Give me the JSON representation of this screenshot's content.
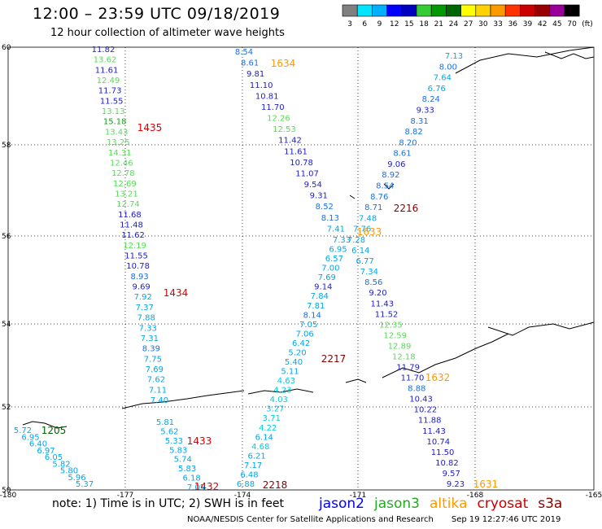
{
  "header": {
    "title": "12:00 – 23:59 UTC 09/18/2019",
    "subtitle": "12 hour collection of altimeter wave heights"
  },
  "legend": {
    "labels": [
      "3",
      "6",
      "9",
      "12",
      "15",
      "18",
      "21",
      "24",
      "27",
      "30",
      "33",
      "36",
      "39",
      "42",
      "45",
      "70"
    ],
    "unit": "(ft)",
    "colors": [
      "#808080",
      "#00e5ff",
      "#00b0ff",
      "#0000ff",
      "#0000c0",
      "#33cc33",
      "#009900",
      "#006600",
      "#ffff00",
      "#ffd200",
      "#ff9900",
      "#ff3300",
      "#cc0000",
      "#990000",
      "#990099",
      "#000000"
    ]
  },
  "axes": {
    "lat_labels": [
      "60",
      "58",
      "56",
      "54",
      "52",
      "50"
    ],
    "lon_labels": [
      "-180",
      "-177",
      "-174",
      "-171",
      "-168",
      "-165"
    ]
  },
  "footer": {
    "note": "note: 1) Time is in UTC; 2) SWH is in feet",
    "credit": "NOAA/NESDIS Center for Satellite Applications and Research",
    "timestamp": "Sep 19 12:27:46 UTC 2019"
  },
  "satellites": [
    {
      "name": "jason2",
      "color": "#0000ff"
    },
    {
      "name": "jason3",
      "color": "#22aa22"
    },
    {
      "name": "altika",
      "color": "#ff9900"
    },
    {
      "name": "cryosat",
      "color": "#cc0000"
    },
    {
      "name": "s3a",
      "color": "#880000"
    }
  ],
  "time_labels": [
    {
      "text": "1634",
      "color": "#ff9900"
    },
    {
      "text": "1435",
      "color": "#dd0000"
    },
    {
      "text": "1434",
      "color": "#dd0000"
    },
    {
      "text": "1433",
      "color": "#dd0000"
    },
    {
      "text": "1432",
      "color": "#dd0000"
    },
    {
      "text": "2218",
      "color": "#880000"
    },
    {
      "text": "2217",
      "color": "#880000"
    },
    {
      "text": "2216",
      "color": "#880000"
    },
    {
      "text": "1633",
      "color": "#ff9900"
    },
    {
      "text": "1632",
      "color": "#ff9900"
    },
    {
      "text": "1631",
      "color": "#ff9900"
    },
    {
      "text": "1205",
      "color": "#006600"
    }
  ],
  "tracks": [
    {
      "id": "cryosat-1435",
      "values": [
        "11.82",
        "13.62",
        "11.61",
        "12.49",
        "11.73",
        "11.55",
        "13.13",
        "15.18",
        "13.43",
        "13.25",
        "14.31",
        "12.46",
        "12.78",
        "12.69",
        "13.21",
        "12.74",
        "11.68",
        "11.48",
        "11.62",
        "12.19",
        "11.55",
        "10.78",
        "8.93",
        "9.69",
        "7.92",
        "7.37",
        "7.88",
        "7.33",
        "7.31",
        "8.39",
        "7.75",
        "7.69",
        "7.62",
        "7.11",
        "7.40"
      ]
    },
    {
      "id": "cryosat-1433",
      "values": [
        "5.81",
        "5.62",
        "5.33",
        "5.83",
        "5.74",
        "5.83",
        "6.18",
        "7.05"
      ]
    },
    {
      "id": "jason3-1205",
      "values": [
        "5.72",
        "6.95",
        "6.40",
        "6.97",
        "6.05",
        "5.82",
        "5.80",
        "5.96",
        "5.37"
      ]
    },
    {
      "id": "altika-1634",
      "values": [
        "8.54",
        "8.61",
        "9.81",
        "11.10",
        "10.81",
        "11.70",
        "12.26",
        "12.53",
        "11.42",
        "11.61",
        "10.78",
        "11.07",
        "9.54",
        "9.31",
        "8.52",
        "8.13",
        "7.41",
        "7.33",
        "6.95",
        "6.57",
        "7.00",
        "7.69",
        "9.14",
        "7.84",
        "7.81",
        "8.14",
        "7.05",
        "7.06",
        "6.42",
        "5.20",
        "5.40",
        "5.11",
        "4.63",
        "4.23",
        "4.03",
        "3.27",
        "3.71",
        "4.22",
        "6.14",
        "4.68",
        "6.21",
        "7.17",
        "6.48",
        "6.88"
      ]
    },
    {
      "id": "s3a-2216",
      "values": [
        "7.13",
        "8.00",
        "7.64",
        "6.76",
        "8.24",
        "9.33",
        "8.31",
        "8.82",
        "8.20",
        "8.61",
        "9.06",
        "8.92",
        "8.54",
        "8.76",
        "8.71",
        "7.48",
        "7.76",
        "7.28",
        "6.14",
        "6.77",
        "7.34",
        "8.56",
        "9.20",
        "11.43",
        "11.52",
        "12.35",
        "12.59",
        "12.89",
        "12.18",
        "11.79",
        "11.70",
        "8.88",
        "10.43",
        "10.22",
        "11.88",
        "11.43",
        "10.74",
        "11.50",
        "10.82",
        "9.57",
        "9.23"
      ]
    }
  ]
}
